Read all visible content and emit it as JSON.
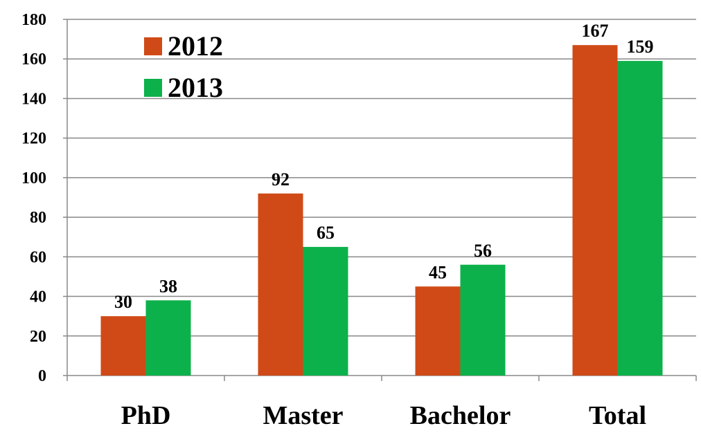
{
  "chart_data": {
    "type": "bar",
    "categories": [
      "PhD",
      "Master",
      "Bachelor",
      "Total"
    ],
    "series": [
      {
        "name": "2012",
        "color": "#d04a17",
        "values": [
          30,
          92,
          45,
          167
        ]
      },
      {
        "name": "2013",
        "color": "#0db14b",
        "values": [
          38,
          65,
          56,
          159
        ]
      }
    ],
    "ylim": [
      0,
      180
    ],
    "yticks": [
      0,
      20,
      40,
      60,
      80,
      100,
      120,
      140,
      160,
      180
    ],
    "grid": true
  }
}
